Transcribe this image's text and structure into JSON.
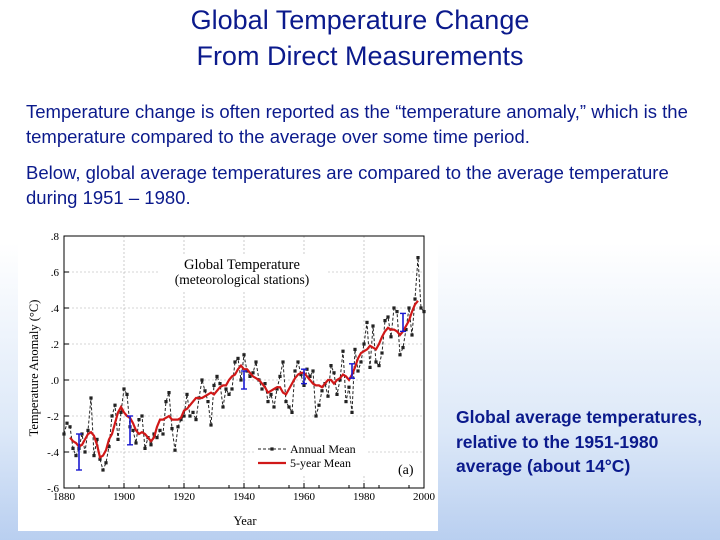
{
  "title_line1": "Global Temperature Change",
  "title_line2": "From Direct Measurements",
  "paragraph1": "Temperature change is often reported as the “temperature anomaly,” which is the temperature compared to the average over some time period.",
  "paragraph2": "Below,  global average temperatures are compared to the average temperature during 1951 – 1980.",
  "caption": "Global average temperatures, relative to the 1951-1980 average (about 14°C)",
  "colors": {
    "text": "#0b1a8c",
    "annual": "#222222",
    "five_year": "#d01818",
    "error_bar": "#1a1ad0"
  },
  "chart_data": {
    "type": "line",
    "title": "Global Temperature",
    "subtitle": "(meteorological stations)",
    "xlabel": "Year",
    "ylabel": "Temperature Anomaly (°C)",
    "panel_label": "(a)",
    "xlim": [
      1880,
      2000
    ],
    "ylim": [
      -0.6,
      0.8
    ],
    "x_ticks": [
      1880,
      1900,
      1920,
      1940,
      1960,
      1980,
      2000
    ],
    "y_ticks": [
      -0.6,
      -0.4,
      -0.2,
      0.0,
      0.2,
      0.4,
      0.6,
      0.8
    ],
    "y_tick_labels": [
      "-.6",
      "-.4",
      "-.2",
      ".0",
      ".2",
      ".4",
      ".6",
      ".8"
    ],
    "grid": true,
    "legend": [
      "Annual Mean",
      "5-year Mean"
    ],
    "series": [
      {
        "name": "Annual Mean",
        "x": [
          1880,
          1881,
          1882,
          1883,
          1884,
          1885,
          1886,
          1887,
          1888,
          1889,
          1890,
          1891,
          1892,
          1893,
          1894,
          1895,
          1896,
          1897,
          1898,
          1899,
          1900,
          1901,
          1902,
          1903,
          1904,
          1905,
          1906,
          1907,
          1908,
          1909,
          1910,
          1911,
          1912,
          1913,
          1914,
          1915,
          1916,
          1917,
          1918,
          1919,
          1920,
          1921,
          1922,
          1923,
          1924,
          1925,
          1926,
          1927,
          1928,
          1929,
          1930,
          1931,
          1932,
          1933,
          1934,
          1935,
          1936,
          1937,
          1938,
          1939,
          1940,
          1941,
          1942,
          1943,
          1944,
          1945,
          1946,
          1947,
          1948,
          1949,
          1950,
          1951,
          1952,
          1953,
          1954,
          1955,
          1956,
          1957,
          1958,
          1959,
          1960,
          1961,
          1962,
          1963,
          1964,
          1965,
          1966,
          1967,
          1968,
          1969,
          1970,
          1971,
          1972,
          1973,
          1974,
          1975,
          1976,
          1977,
          1978,
          1979,
          1980,
          1981,
          1982,
          1983,
          1984,
          1985,
          1986,
          1987,
          1988,
          1989,
          1990,
          1991,
          1992,
          1993,
          1994,
          1995,
          1996,
          1997,
          1998,
          1999,
          2000
        ],
        "values": [
          -0.3,
          -0.24,
          -0.26,
          -0.38,
          -0.42,
          -0.38,
          -0.3,
          -0.4,
          -0.28,
          -0.1,
          -0.42,
          -0.33,
          -0.44,
          -0.5,
          -0.46,
          -0.37,
          -0.2,
          -0.14,
          -0.33,
          -0.18,
          -0.05,
          -0.08,
          -0.26,
          -0.28,
          -0.35,
          -0.22,
          -0.2,
          -0.38,
          -0.32,
          -0.36,
          -0.3,
          -0.32,
          -0.28,
          -0.3,
          -0.12,
          -0.07,
          -0.27,
          -0.39,
          -0.26,
          -0.22,
          -0.2,
          -0.08,
          -0.2,
          -0.18,
          -0.22,
          -0.1,
          0.0,
          -0.06,
          -0.12,
          -0.25,
          -0.03,
          0.02,
          -0.02,
          -0.15,
          -0.05,
          -0.08,
          -0.05,
          0.1,
          0.12,
          0.0,
          0.14,
          0.05,
          0.02,
          0.04,
          0.1,
          0.0,
          -0.05,
          -0.02,
          -0.12,
          -0.08,
          -0.15,
          -0.05,
          0.02,
          0.1,
          -0.12,
          -0.15,
          -0.18,
          0.05,
          0.1,
          0.03,
          -0.03,
          0.06,
          0.02,
          0.05,
          -0.2,
          -0.14,
          -0.06,
          -0.02,
          -0.09,
          0.08,
          0.04,
          -0.08,
          0.0,
          0.16,
          -0.12,
          -0.04,
          -0.18,
          0.17,
          0.05,
          0.1,
          0.2,
          0.32,
          0.07,
          0.3,
          0.1,
          0.08,
          0.15,
          0.33,
          0.35,
          0.24,
          0.4,
          0.38,
          0.14,
          0.18,
          0.28,
          0.4,
          0.25,
          0.45,
          0.68,
          0.4,
          0.38
        ]
      },
      {
        "name": "5-year Mean",
        "x": [
          1882,
          1883,
          1884,
          1885,
          1886,
          1887,
          1888,
          1889,
          1890,
          1891,
          1892,
          1893,
          1894,
          1895,
          1896,
          1897,
          1898,
          1899,
          1900,
          1901,
          1902,
          1903,
          1904,
          1905,
          1906,
          1907,
          1908,
          1909,
          1910,
          1911,
          1912,
          1913,
          1914,
          1915,
          1916,
          1917,
          1918,
          1919,
          1920,
          1921,
          1922,
          1923,
          1924,
          1925,
          1926,
          1927,
          1928,
          1929,
          1930,
          1931,
          1932,
          1933,
          1934,
          1935,
          1936,
          1937,
          1938,
          1939,
          1940,
          1941,
          1942,
          1943,
          1944,
          1945,
          1946,
          1947,
          1948,
          1949,
          1950,
          1951,
          1952,
          1953,
          1954,
          1955,
          1956,
          1957,
          1958,
          1959,
          1960,
          1961,
          1962,
          1963,
          1964,
          1965,
          1966,
          1967,
          1968,
          1969,
          1970,
          1971,
          1972,
          1973,
          1974,
          1975,
          1976,
          1977,
          1978,
          1979,
          1980,
          1981,
          1982,
          1983,
          1984,
          1985,
          1986,
          1987,
          1988,
          1989,
          1990,
          1991,
          1992,
          1993,
          1994,
          1995,
          1996,
          1997,
          1998
        ],
        "values": [
          -0.32,
          -0.34,
          -0.35,
          -0.37,
          -0.36,
          -0.33,
          -0.3,
          -0.29,
          -0.31,
          -0.36,
          -0.43,
          -0.42,
          -0.39,
          -0.33,
          -0.3,
          -0.24,
          -0.18,
          -0.15,
          -0.18,
          -0.2,
          -0.21,
          -0.24,
          -0.28,
          -0.3,
          -0.29,
          -0.3,
          -0.32,
          -0.34,
          -0.32,
          -0.26,
          -0.22,
          -0.22,
          -0.21,
          -0.2,
          -0.22,
          -0.22,
          -0.22,
          -0.21,
          -0.17,
          -0.16,
          -0.14,
          -0.12,
          -0.1,
          -0.1,
          -0.1,
          -0.09,
          -0.08,
          -0.07,
          -0.08,
          -0.06,
          -0.04,
          -0.03,
          -0.03,
          0.0,
          0.02,
          0.03,
          0.06,
          0.08,
          0.06,
          0.06,
          0.04,
          0.02,
          0.01,
          0.0,
          -0.02,
          -0.04,
          -0.07,
          -0.06,
          -0.05,
          -0.04,
          -0.04,
          -0.07,
          -0.08,
          -0.05,
          -0.02,
          0.01,
          0.03,
          0.04,
          0.04,
          0.02,
          0.0,
          -0.02,
          -0.03,
          -0.03,
          -0.04,
          -0.02,
          0.0,
          0.0,
          -0.02,
          0.0,
          0.01,
          0.03,
          0.02,
          0.0,
          0.03,
          0.07,
          0.12,
          0.15,
          0.16,
          0.17,
          0.19,
          0.18,
          0.17,
          0.2,
          0.24,
          0.27,
          0.29,
          0.28,
          0.28,
          0.27,
          0.25,
          0.27,
          0.3,
          0.33,
          0.38,
          0.42,
          0.44
        ]
      },
      {
        "name": "Uncertainty",
        "x": [
          1885,
          1902,
          1940,
          1960,
          1976,
          1993
        ],
        "values": [
          -0.4,
          -0.28,
          0.0,
          0.02,
          0.05,
          0.32
        ],
        "error": [
          0.1,
          0.08,
          0.05,
          0.04,
          0.04,
          0.05
        ]
      }
    ]
  }
}
